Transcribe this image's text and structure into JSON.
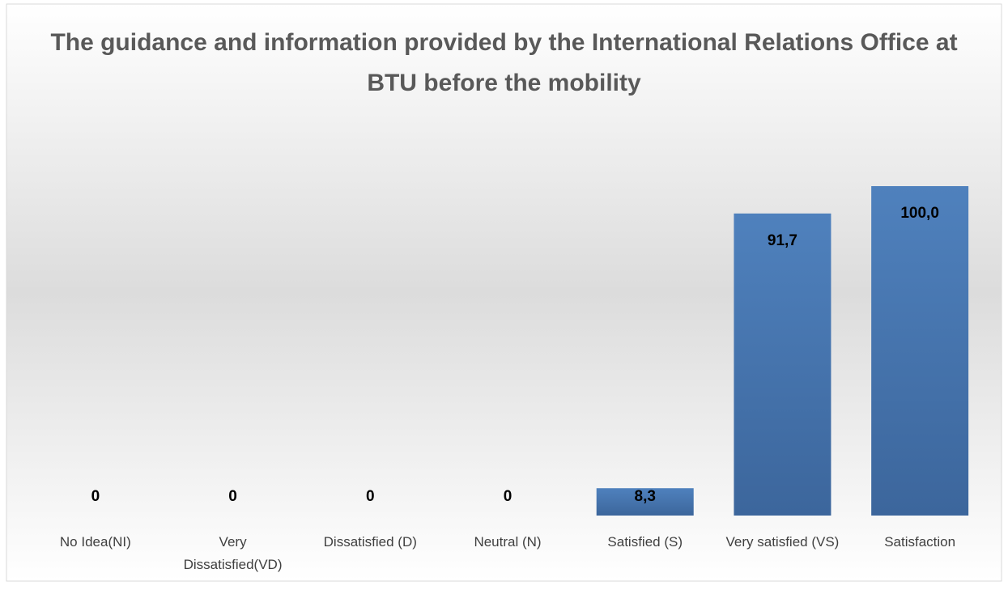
{
  "chart_data": {
    "type": "bar",
    "title": "The guidance and information provided by the International Relations Office at BTU before the mobility",
    "categories": [
      "No Idea(NI)",
      "Very Dissatisfied(VD)",
      "Dissatisfied (D)",
      "Neutral (N)",
      "Satisfied (S)",
      "Very satisfied (VS)",
      "Satisfaction"
    ],
    "values": [
      0,
      0,
      0,
      0,
      8.3,
      91.7,
      100.0
    ],
    "value_labels": [
      "0",
      "0",
      "0",
      "0",
      "8,3",
      "91,7",
      "100,0"
    ],
    "color": "#4a7ab8"
  }
}
